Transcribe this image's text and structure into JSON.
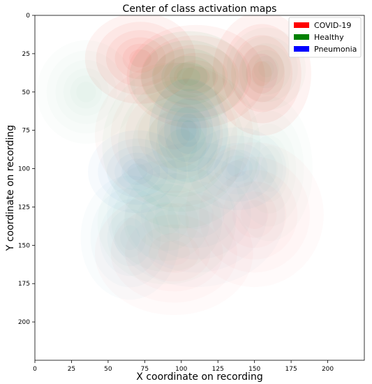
{
  "chart_data": {
    "type": "heatmap",
    "title": "Center of class activation maps",
    "xlabel": "X coordinate on recording",
    "ylabel": "Y coordinate on recording",
    "xlim": [
      0,
      225
    ],
    "ylim": [
      225,
      0
    ],
    "y_axis_inverted": true,
    "x_ticks": [
      0,
      25,
      50,
      75,
      100,
      125,
      150,
      175,
      200
    ],
    "y_ticks": [
      0,
      25,
      50,
      75,
      100,
      125,
      150,
      175,
      200
    ],
    "grid": false,
    "legend_position": "top-right",
    "series": [
      {
        "name": "COVID-19",
        "color": "#ff0000",
        "fill_color": "#ef3b2c",
        "centers": [
          {
            "x": 72,
            "y": 28,
            "spread_x": 28,
            "spread_y": 22,
            "weight": 0.9
          },
          {
            "x": 110,
            "y": 40,
            "spread_x": 35,
            "spread_y": 25,
            "weight": 0.8
          },
          {
            "x": 155,
            "y": 38,
            "spread_x": 25,
            "spread_y": 30,
            "weight": 0.9
          },
          {
            "x": 95,
            "y": 78,
            "spread_x": 40,
            "spread_y": 35,
            "weight": 0.45
          },
          {
            "x": 150,
            "y": 130,
            "spread_x": 35,
            "spread_y": 35,
            "weight": 0.35
          },
          {
            "x": 95,
            "y": 155,
            "spread_x": 40,
            "spread_y": 30,
            "weight": 0.35
          }
        ]
      },
      {
        "name": "Healthy",
        "color": "#008000",
        "fill_color": "#41ab5d",
        "centers": [
          {
            "x": 105,
            "y": 40,
            "spread_x": 30,
            "spread_y": 22,
            "weight": 0.95
          },
          {
            "x": 35,
            "y": 50,
            "spread_x": 25,
            "spread_y": 25,
            "weight": 0.3
          },
          {
            "x": 158,
            "y": 35,
            "spread_x": 20,
            "spread_y": 20,
            "weight": 0.45
          },
          {
            "x": 100,
            "y": 85,
            "spread_x": 40,
            "spread_y": 40,
            "weight": 0.55
          },
          {
            "x": 90,
            "y": 135,
            "spread_x": 35,
            "spread_y": 30,
            "weight": 0.4
          },
          {
            "x": 160,
            "y": 100,
            "spread_x": 22,
            "spread_y": 35,
            "weight": 0.3
          }
        ]
      },
      {
        "name": "Pneumonia",
        "color": "#0000ff",
        "fill_color": "#4292c6",
        "centers": [
          {
            "x": 105,
            "y": 75,
            "spread_x": 20,
            "spread_y": 25,
            "weight": 0.95
          },
          {
            "x": 70,
            "y": 102,
            "spread_x": 25,
            "spread_y": 20,
            "weight": 0.6
          },
          {
            "x": 138,
            "y": 100,
            "spread_x": 25,
            "spread_y": 20,
            "weight": 0.55
          },
          {
            "x": 65,
            "y": 145,
            "spread_x": 25,
            "spread_y": 30,
            "weight": 0.45
          },
          {
            "x": 110,
            "y": 130,
            "spread_x": 45,
            "spread_y": 35,
            "weight": 0.4
          }
        ]
      }
    ]
  }
}
